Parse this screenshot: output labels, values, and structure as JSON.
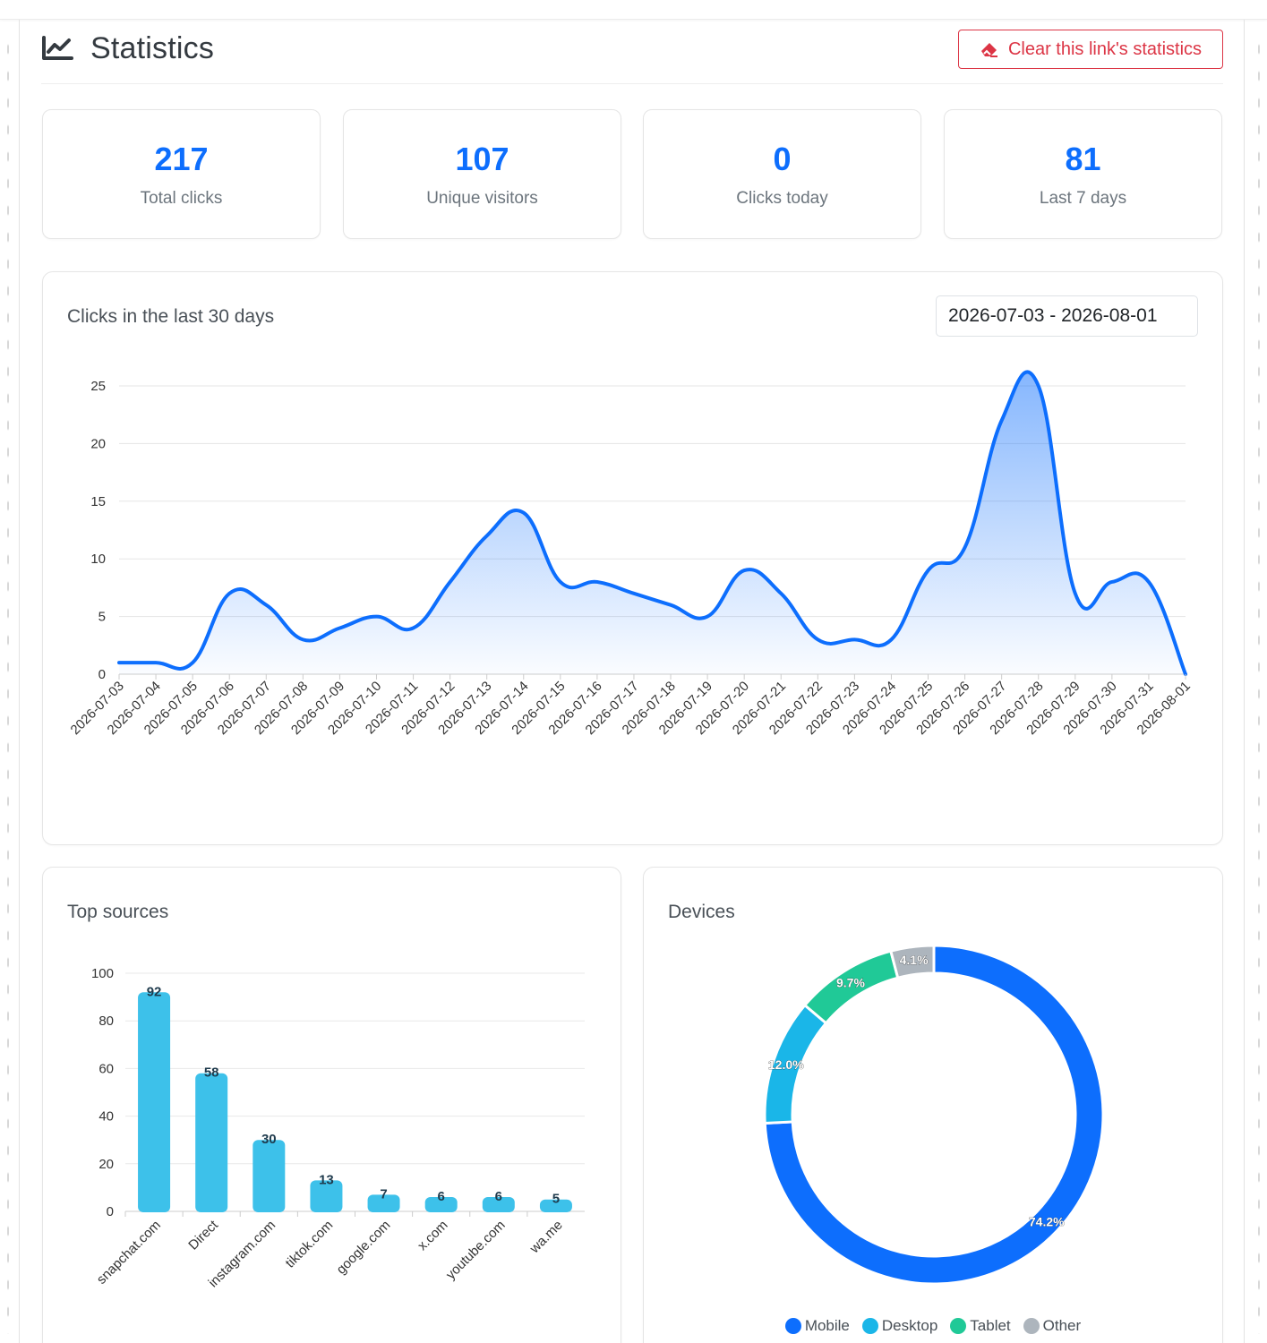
{
  "header": {
    "title": "Statistics",
    "clear_label": "Clear this link's statistics"
  },
  "stats": [
    {
      "value": "217",
      "label": "Total clicks"
    },
    {
      "value": "107",
      "label": "Unique visitors"
    },
    {
      "value": "0",
      "label": "Clicks today"
    },
    {
      "value": "81",
      "label": "Last 7 days"
    }
  ],
  "clicks_panel": {
    "title": "Clicks in the last 30 days",
    "date_range": "2026-07-03 - 2026-08-01"
  },
  "sources_panel": {
    "title": "Top sources"
  },
  "devices_panel": {
    "title": "Devices"
  },
  "colors": {
    "primary": "#0d6efd",
    "danger": "#dc3545",
    "bar": "#3dc1ea",
    "desktop": "#1ab6e8",
    "tablet": "#20c997",
    "other": "#adb5bd"
  },
  "chart_data": [
    {
      "type": "area",
      "title": "Clicks in the last 30 days",
      "x": [
        "2026-07-03",
        "2026-07-04",
        "2026-07-05",
        "2026-07-06",
        "2026-07-07",
        "2026-07-08",
        "2026-07-09",
        "2026-07-10",
        "2026-07-11",
        "2026-07-12",
        "2026-07-13",
        "2026-07-14",
        "2026-07-15",
        "2026-07-16",
        "2026-07-17",
        "2026-07-18",
        "2026-07-19",
        "2026-07-20",
        "2026-07-21",
        "2026-07-22",
        "2026-07-23",
        "2026-07-24",
        "2026-07-25",
        "2026-07-26",
        "2026-07-27",
        "2026-07-28",
        "2026-07-29",
        "2026-07-30",
        "2026-07-31",
        "2026-08-01"
      ],
      "values": [
        1,
        1,
        1,
        7,
        6,
        3,
        4,
        5,
        4,
        8,
        12,
        14,
        8,
        8,
        7,
        6,
        5,
        9,
        7,
        3,
        3,
        3,
        9,
        11,
        22,
        25,
        7,
        8,
        8,
        0
      ],
      "ylim": [
        0,
        25
      ],
      "yticks": [
        0,
        5,
        10,
        15,
        20,
        25
      ],
      "grid": true
    },
    {
      "type": "bar",
      "title": "Top sources",
      "categories": [
        "snapchat.com",
        "Direct",
        "instagram.com",
        "tiktok.com",
        "google.com",
        "x.com",
        "youtube.com",
        "wa.me"
      ],
      "values": [
        92,
        58,
        30,
        13,
        7,
        6,
        6,
        5
      ],
      "ylim": [
        0,
        100
      ],
      "yticks": [
        0,
        20,
        40,
        60,
        80,
        100
      ],
      "grid": true
    },
    {
      "type": "pie",
      "title": "Devices",
      "labels": [
        "Mobile",
        "Desktop",
        "Tablet",
        "Other"
      ],
      "values": [
        74.2,
        12.0,
        9.7,
        4.1
      ],
      "value_labels": [
        "74.2%",
        "12.0%",
        "9.7%",
        "4.1%"
      ],
      "colors": [
        "#0d6efd",
        "#1ab6e8",
        "#20c997",
        "#adb5bd"
      ],
      "legend": "bottom"
    }
  ]
}
